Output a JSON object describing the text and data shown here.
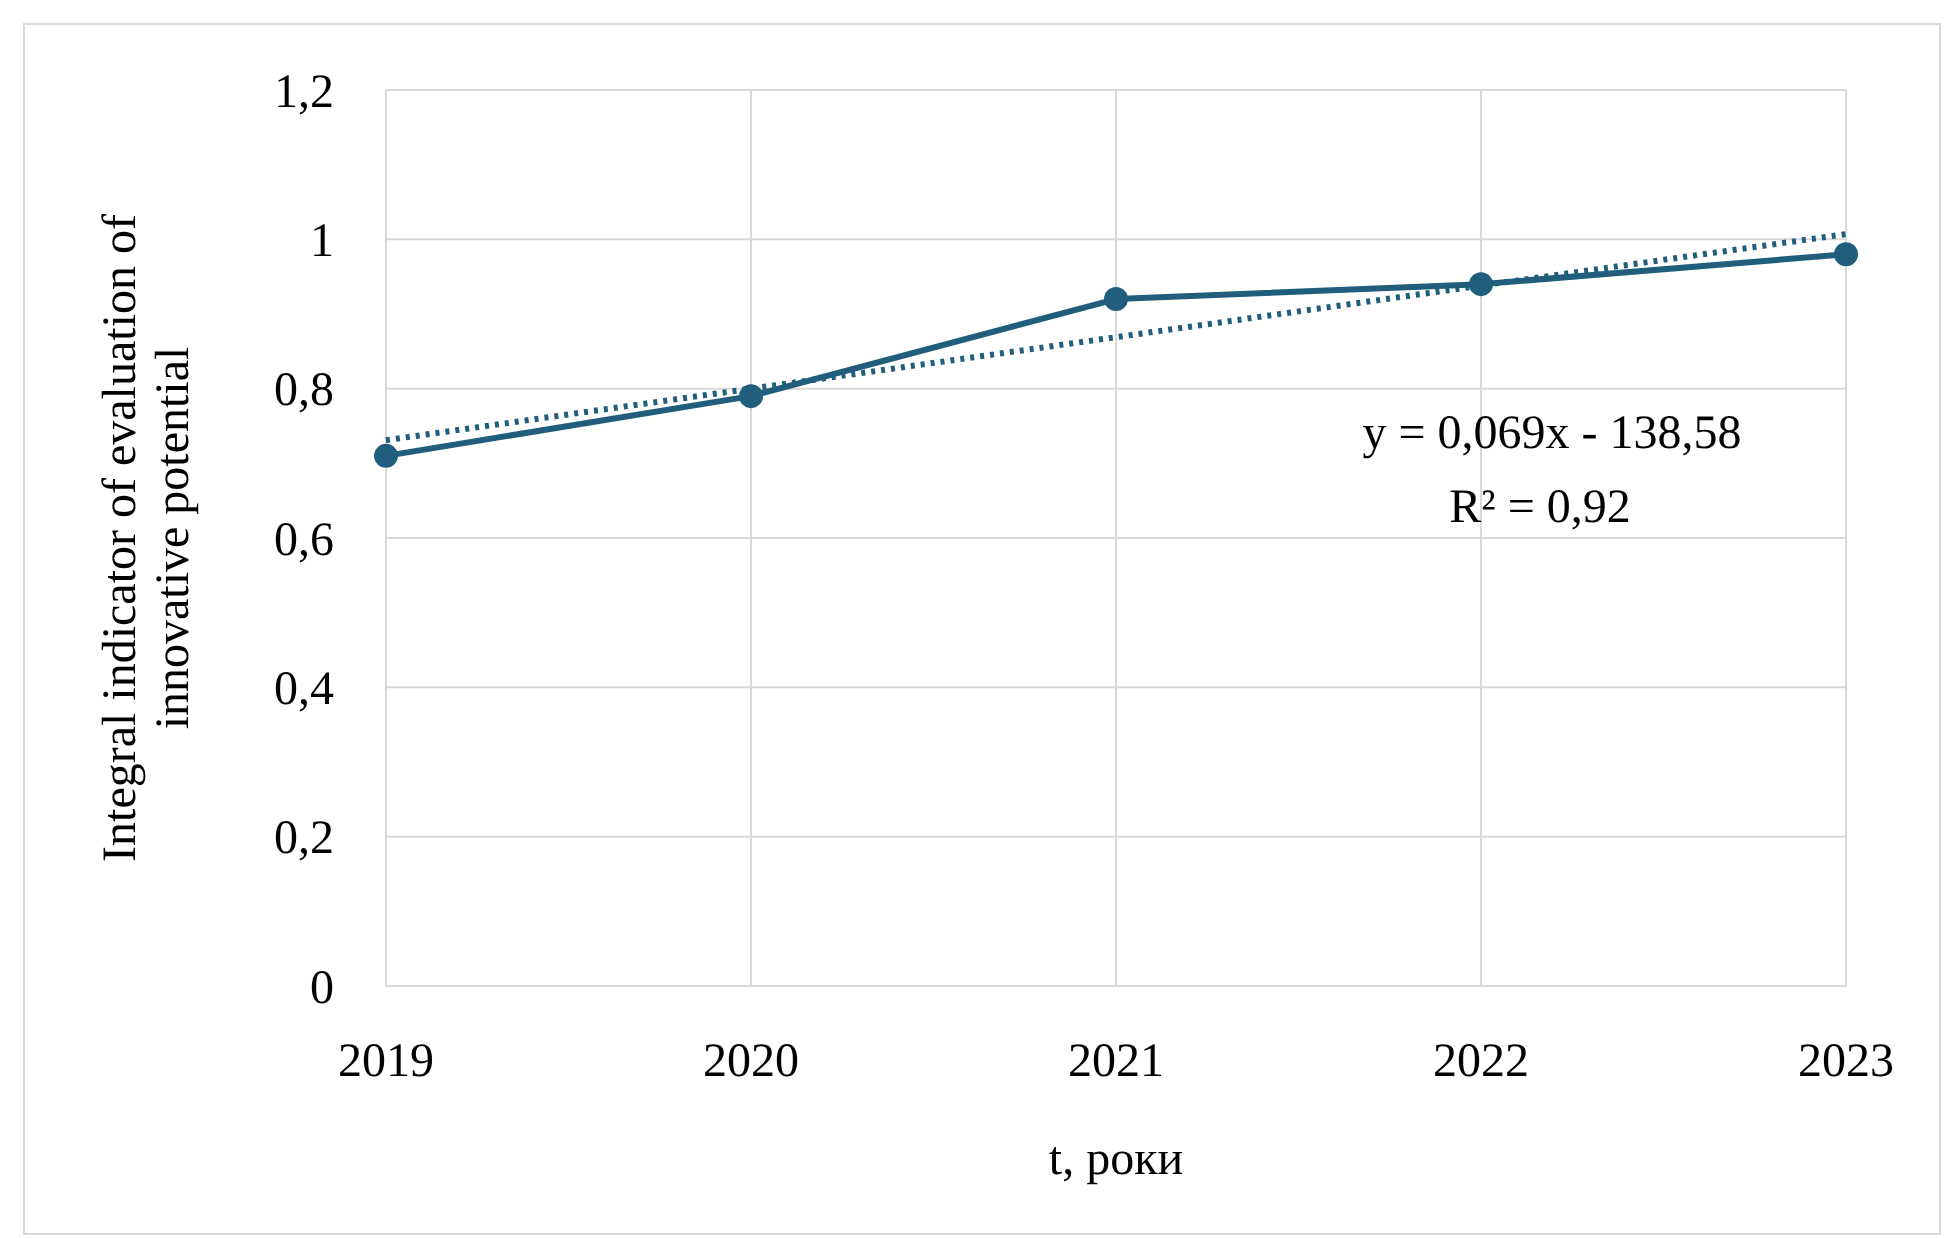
{
  "chart_data": {
    "type": "line",
    "xlabel": "t, роки",
    "ylabel": "Integral indicator of evaluation of innovative potential",
    "x": [
      2019,
      2020,
      2021,
      2022,
      2023
    ],
    "series": [
      {
        "color": "#205e7b",
        "values": [
          0.71,
          0.79,
          0.92,
          0.94,
          0.98
        ],
        "marker": "circle",
        "line_style": "solid"
      },
      {
        "type": "line",
        "color": "#205e7b",
        "x": [
          2019,
          2023
        ],
        "values": [
          0.731,
          1.007
        ],
        "marker": "none",
        "line_style": "dotted"
      }
    ],
    "xlim": [
      2019,
      2023
    ],
    "xticks": [
      2019,
      2020,
      2021,
      2022,
      2023
    ],
    "ylim": [
      0,
      1.2
    ],
    "yticks": [
      0,
      {
        "value": 0.2,
        "label": "0,2"
      },
      {
        "value": 0.4,
        "label": "0,4"
      },
      {
        "value": 0.6,
        "label": "0,6"
      },
      {
        "value": 0.8,
        "label": "0,8"
      },
      1,
      {
        "value": 1.2,
        "label": "1,2"
      }
    ],
    "grid": true,
    "annotations": [
      "y = 0,069x - 138,58",
      "R² = 0,92"
    ]
  }
}
